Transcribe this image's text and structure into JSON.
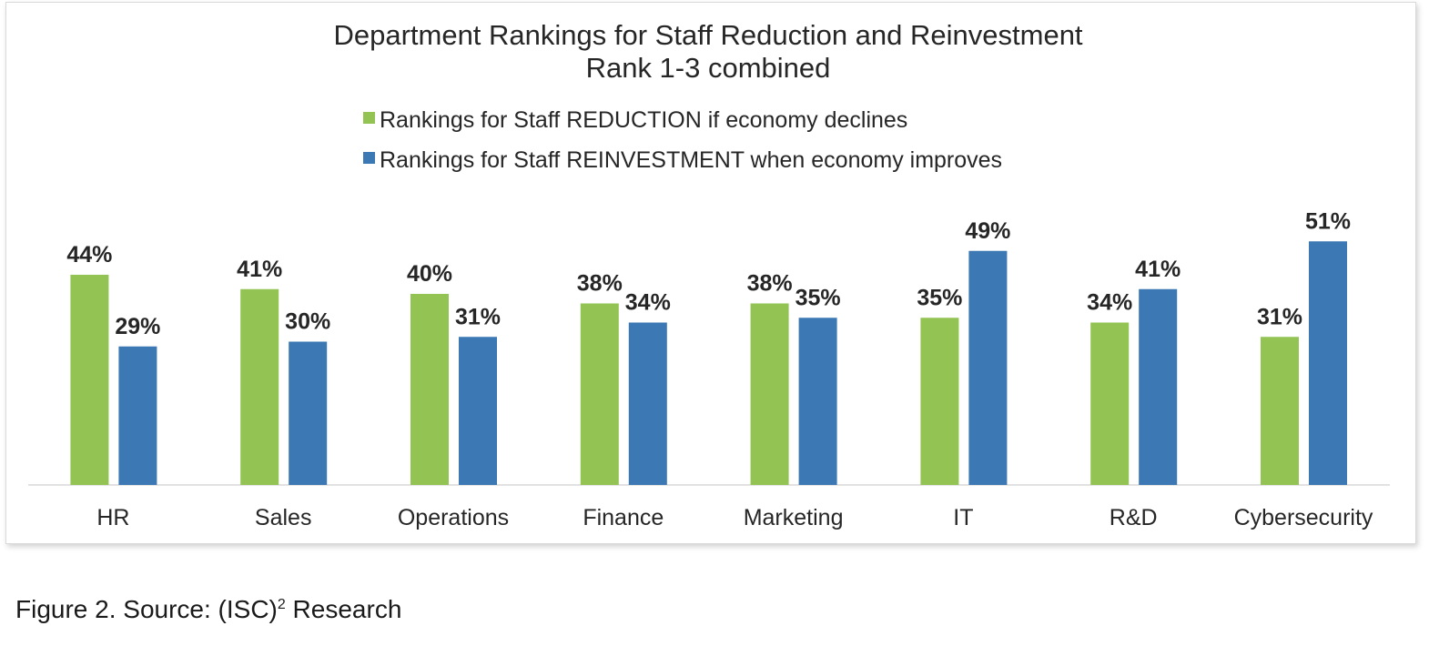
{
  "chart_data": {
    "type": "bar",
    "title": "Department Rankings for Staff Reduction and Reinvestment",
    "subtitle": "Rank 1-3 combined",
    "categories": [
      "HR",
      "Sales",
      "Operations",
      "Finance",
      "Marketing",
      "IT",
      "R&D",
      "Cybersecurity"
    ],
    "series": [
      {
        "name": "Rankings for Staff REDUCTION if economy declines",
        "color": "#92c353",
        "values": [
          44,
          41,
          40,
          38,
          38,
          35,
          34,
          31
        ],
        "labels": [
          "44%",
          "41%",
          "40%",
          "38%",
          "38%",
          "35%",
          "34%",
          "31%"
        ]
      },
      {
        "name": "Rankings for Staff REINVESTMENT when economy improves",
        "color": "#3b78b4",
        "values": [
          29,
          30,
          31,
          34,
          35,
          49,
          41,
          51
        ],
        "labels": [
          "29%",
          "30%",
          "31%",
          "34%",
          "35%",
          "49%",
          "41%",
          "51%"
        ]
      }
    ],
    "ylim": [
      0,
      60
    ],
    "xlabel": "",
    "ylabel": "",
    "legend_position": "top-center",
    "grid": false
  },
  "caption": {
    "prefix": "Figure 2. Source: (ISC)",
    "superscript": "2",
    "suffix": " Research"
  }
}
